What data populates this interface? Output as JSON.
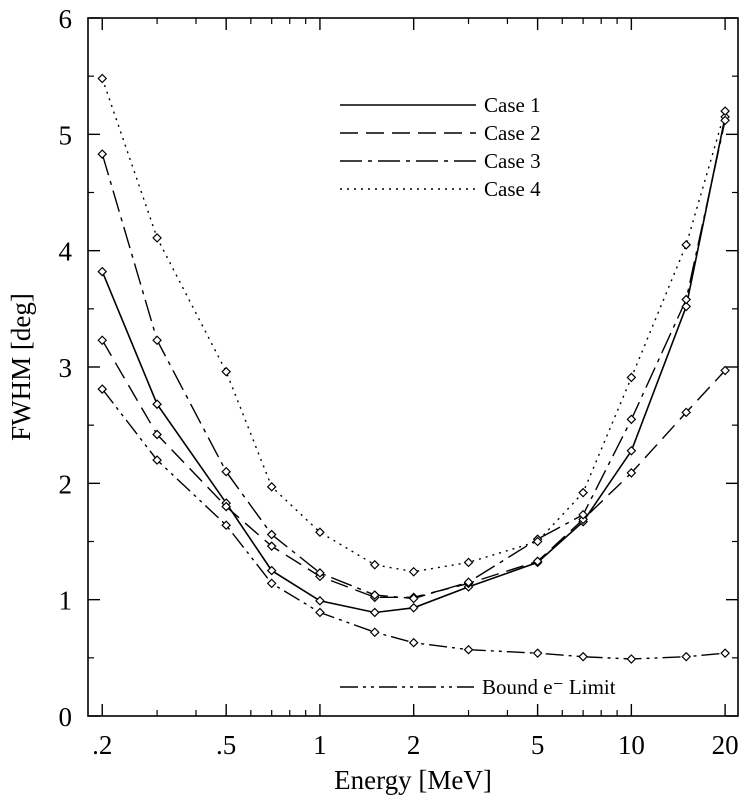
{
  "chart_data": {
    "type": "line",
    "xscale": "log",
    "xlim": [
      0.18,
      22
    ],
    "ylim": [
      0,
      6
    ],
    "xlabel": "Energy [MeV]",
    "ylabel": "FWHM [deg]",
    "xticks": [
      {
        "value": 0.2,
        "label": ".2"
      },
      {
        "value": 0.5,
        "label": ".5"
      },
      {
        "value": 1,
        "label": "1"
      },
      {
        "value": 2,
        "label": "2"
      },
      {
        "value": 5,
        "label": "5"
      },
      {
        "value": 10,
        "label": "10"
      },
      {
        "value": 20,
        "label": "20"
      }
    ],
    "yticks": [
      {
        "value": 0,
        "label": "0"
      },
      {
        "value": 1,
        "label": "1"
      },
      {
        "value": 2,
        "label": "2"
      },
      {
        "value": 3,
        "label": "3"
      },
      {
        "value": 4,
        "label": "4"
      },
      {
        "value": 5,
        "label": "5"
      },
      {
        "value": 6,
        "label": "6"
      }
    ],
    "x": [
      0.2,
      0.3,
      0.5,
      0.7,
      1,
      1.5,
      2,
      3,
      5,
      7,
      10,
      15,
      20
    ],
    "series": [
      {
        "name": "Case 1",
        "dash": "solid",
        "values": [
          3.82,
          2.68,
          1.83,
          1.25,
          0.99,
          0.89,
          0.93,
          1.11,
          1.32,
          1.67,
          2.28,
          3.52,
          5.15
        ]
      },
      {
        "name": "Case 2",
        "dash": "dashed",
        "values": [
          3.23,
          2.42,
          1.8,
          1.46,
          1.2,
          1.02,
          1.02,
          1.14,
          1.33,
          1.69,
          2.09,
          2.61,
          2.97
        ]
      },
      {
        "name": "Case 3",
        "dash": "dashdot",
        "values": [
          4.83,
          3.23,
          2.1,
          1.56,
          1.23,
          1.04,
          1.01,
          1.15,
          1.52,
          1.73,
          2.55,
          3.58,
          5.12
        ]
      },
      {
        "name": "Case 4",
        "dash": "dotted",
        "values": [
          5.48,
          4.11,
          2.96,
          1.97,
          1.58,
          1.3,
          1.24,
          1.32,
          1.5,
          1.92,
          2.91,
          4.05,
          5.2
        ]
      },
      {
        "name": "Bound e⁻ Limit",
        "dash": "dashdotdot",
        "values": [
          2.81,
          2.2,
          1.64,
          1.14,
          0.89,
          0.72,
          0.63,
          0.57,
          0.54,
          0.51,
          0.49,
          0.51,
          0.54
        ]
      }
    ],
    "legend": {
      "placement": "top-center",
      "entries": [
        "Case 1",
        "Case 2",
        "Case 3",
        "Case 4"
      ]
    },
    "annotation_legend": {
      "placement": "bottom-right",
      "entry": "Bound e⁻ Limit"
    },
    "marker": "diamond",
    "grid": false
  }
}
